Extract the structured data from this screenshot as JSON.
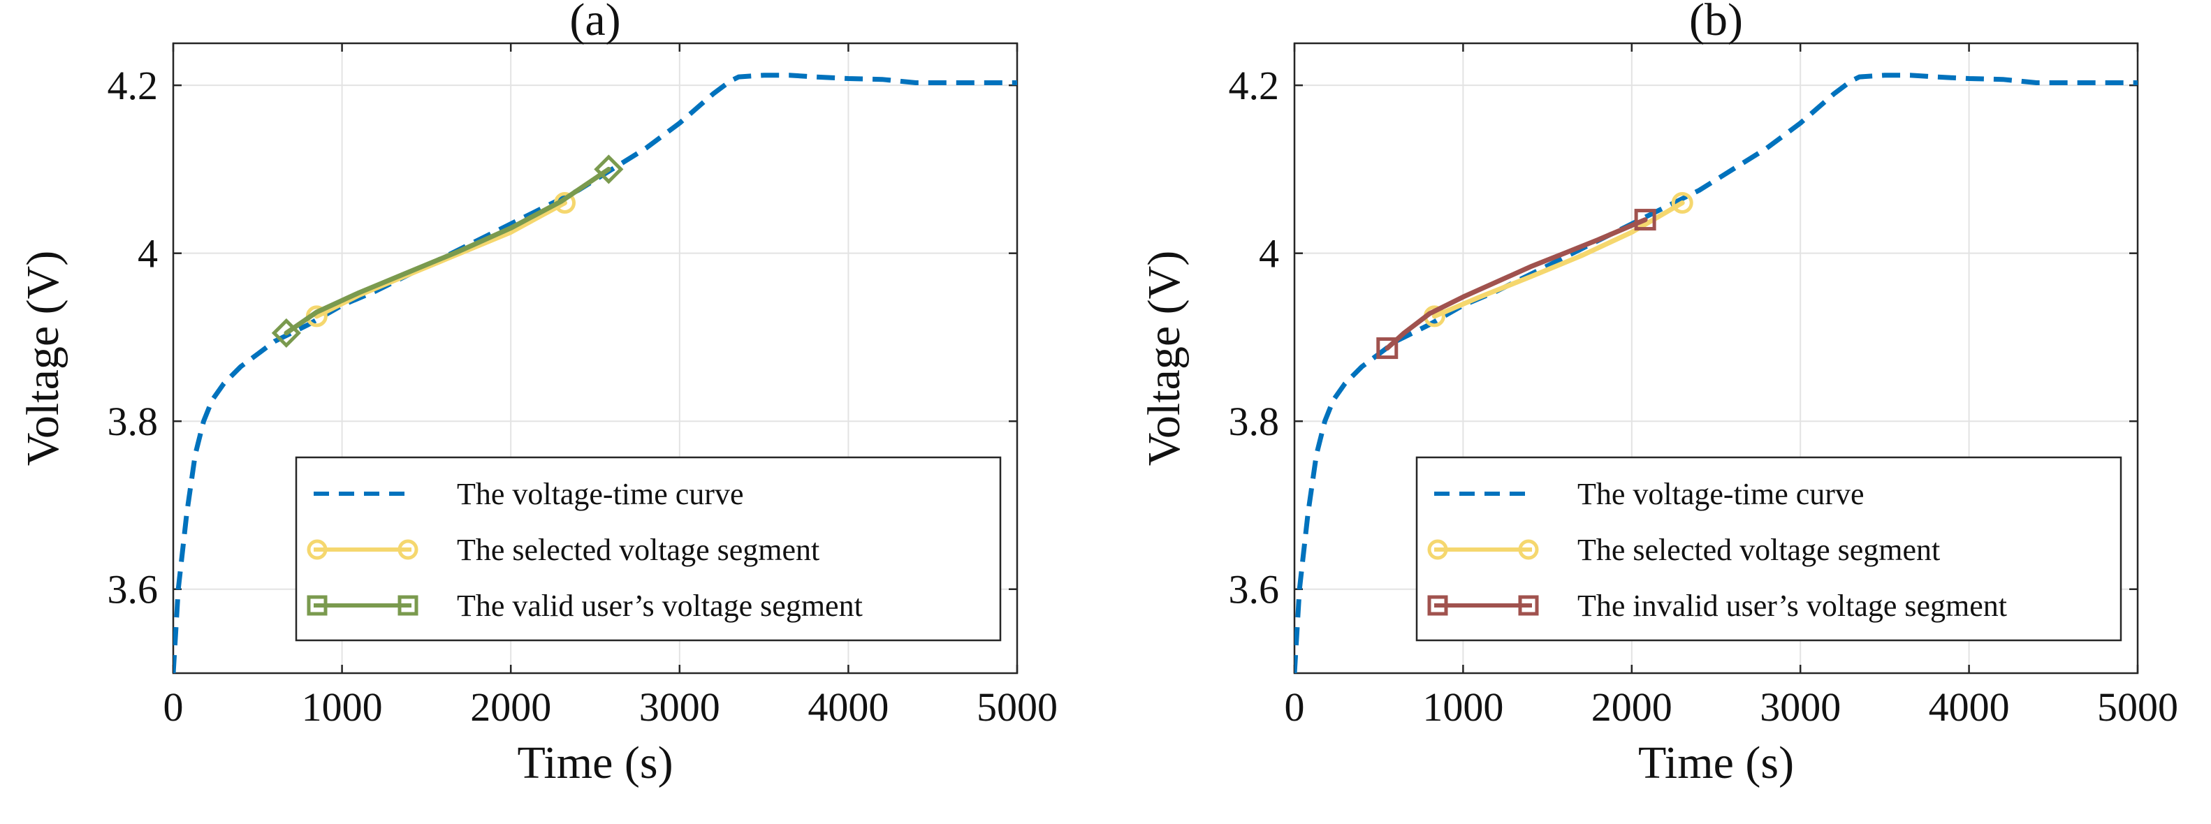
{
  "chart_data": [
    {
      "type": "line",
      "title": "(a)",
      "xlabel": "Time (s)",
      "ylabel": "Voltage (V)",
      "xlim": [
        0,
        5000
      ],
      "ylim": [
        3.5,
        4.25
      ],
      "xticks": [
        0,
        1000,
        2000,
        3000,
        4000,
        5000
      ],
      "xtick_labels": [
        "0",
        "1000",
        "2000",
        "3000",
        "4000",
        "5000"
      ],
      "yticks": [
        3.6,
        3.8,
        4.0,
        4.2
      ],
      "ytick_labels": [
        "3.6",
        "3.8",
        "4",
        "4.2"
      ],
      "grid": true,
      "legend_position": "bottom-right",
      "series": [
        {
          "name": "The voltage-time curve",
          "style": "dashed",
          "marker": "none",
          "color": "#0072BD",
          "x": [
            0,
            30,
            80,
            130,
            180,
            230,
            300,
            400,
            500,
            600,
            700,
            800,
            1000,
            1200,
            1400,
            1600,
            1800,
            2000,
            2200,
            2400,
            2600,
            2800,
            3000,
            3200,
            3300,
            3350,
            3500,
            3650,
            3800,
            4000,
            4200,
            4400,
            4600,
            4800,
            5000
          ],
          "y": [
            3.5,
            3.6,
            3.69,
            3.76,
            3.8,
            3.825,
            3.845,
            3.865,
            3.88,
            3.895,
            3.905,
            3.915,
            3.938,
            3.955,
            3.975,
            3.995,
            4.015,
            4.035,
            4.055,
            4.075,
            4.1,
            4.125,
            4.155,
            4.19,
            4.205,
            4.21,
            4.212,
            4.212,
            4.21,
            4.208,
            4.207,
            4.203,
            4.203,
            4.203,
            4.203
          ]
        },
        {
          "name": "The selected voltage segment",
          "style": "solid",
          "marker": "circle",
          "color": "#F5D76E",
          "x": [
            850,
            1100,
            1400,
            1700,
            2000,
            2320
          ],
          "y": [
            3.925,
            3.95,
            3.975,
            4.0,
            4.025,
            4.06
          ]
        },
        {
          "name": "The valid user’s voltage segment",
          "style": "solid",
          "marker": "square",
          "color": "#7A9A4E",
          "x": [
            670,
            850,
            1100,
            1400,
            1700,
            2000,
            2300,
            2580
          ],
          "y": [
            3.905,
            3.93,
            3.953,
            3.978,
            4.003,
            4.03,
            4.062,
            4.1
          ],
          "marker_indices": [
            0,
            7
          ],
          "marker_shape_in_plot": "diamond"
        }
      ]
    },
    {
      "type": "line",
      "title": "(b)",
      "xlabel": "Time (s)",
      "ylabel": "Voltage (V)",
      "xlim": [
        0,
        5000
      ],
      "ylim": [
        3.5,
        4.25
      ],
      "xticks": [
        0,
        1000,
        2000,
        3000,
        4000,
        5000
      ],
      "xtick_labels": [
        "0",
        "1000",
        "2000",
        "3000",
        "4000",
        "5000"
      ],
      "yticks": [
        3.6,
        3.8,
        4.0,
        4.2
      ],
      "ytick_labels": [
        "3.6",
        "3.8",
        "4",
        "4.2"
      ],
      "grid": true,
      "legend_position": "bottom-right",
      "series": [
        {
          "name": "The voltage-time curve",
          "style": "dashed",
          "marker": "none",
          "color": "#0072BD",
          "x": [
            0,
            30,
            80,
            130,
            180,
            230,
            300,
            400,
            500,
            600,
            700,
            800,
            1000,
            1200,
            1400,
            1600,
            1800,
            2000,
            2200,
            2400,
            2600,
            2800,
            3000,
            3200,
            3300,
            3350,
            3500,
            3650,
            3800,
            4000,
            4200,
            4400,
            4600,
            4800,
            5000
          ],
          "y": [
            3.5,
            3.6,
            3.69,
            3.76,
            3.8,
            3.825,
            3.845,
            3.865,
            3.88,
            3.895,
            3.905,
            3.915,
            3.938,
            3.955,
            3.975,
            3.995,
            4.015,
            4.035,
            4.055,
            4.075,
            4.1,
            4.125,
            4.155,
            4.19,
            4.205,
            4.21,
            4.212,
            4.212,
            4.21,
            4.208,
            4.207,
            4.203,
            4.203,
            4.203,
            4.203
          ]
        },
        {
          "name": "The selected voltage segment",
          "style": "solid",
          "marker": "circle",
          "color": "#F5D76E",
          "x": [
            830,
            1100,
            1400,
            1700,
            2000,
            2300
          ],
          "y": [
            3.925,
            3.948,
            3.972,
            3.997,
            4.025,
            4.06
          ]
        },
        {
          "name": "The invalid user’s voltage segment",
          "style": "solid",
          "marker": "square",
          "color": "#A0524E",
          "x": [
            550,
            650,
            800,
            1000,
            1200,
            1400,
            1600,
            1800,
            2080
          ],
          "y": [
            3.887,
            3.905,
            3.928,
            3.948,
            3.966,
            3.984,
            4.0,
            4.016,
            4.04
          ],
          "marker_indices": [
            0,
            8
          ],
          "marker_shape_in_plot": "square"
        }
      ]
    }
  ]
}
